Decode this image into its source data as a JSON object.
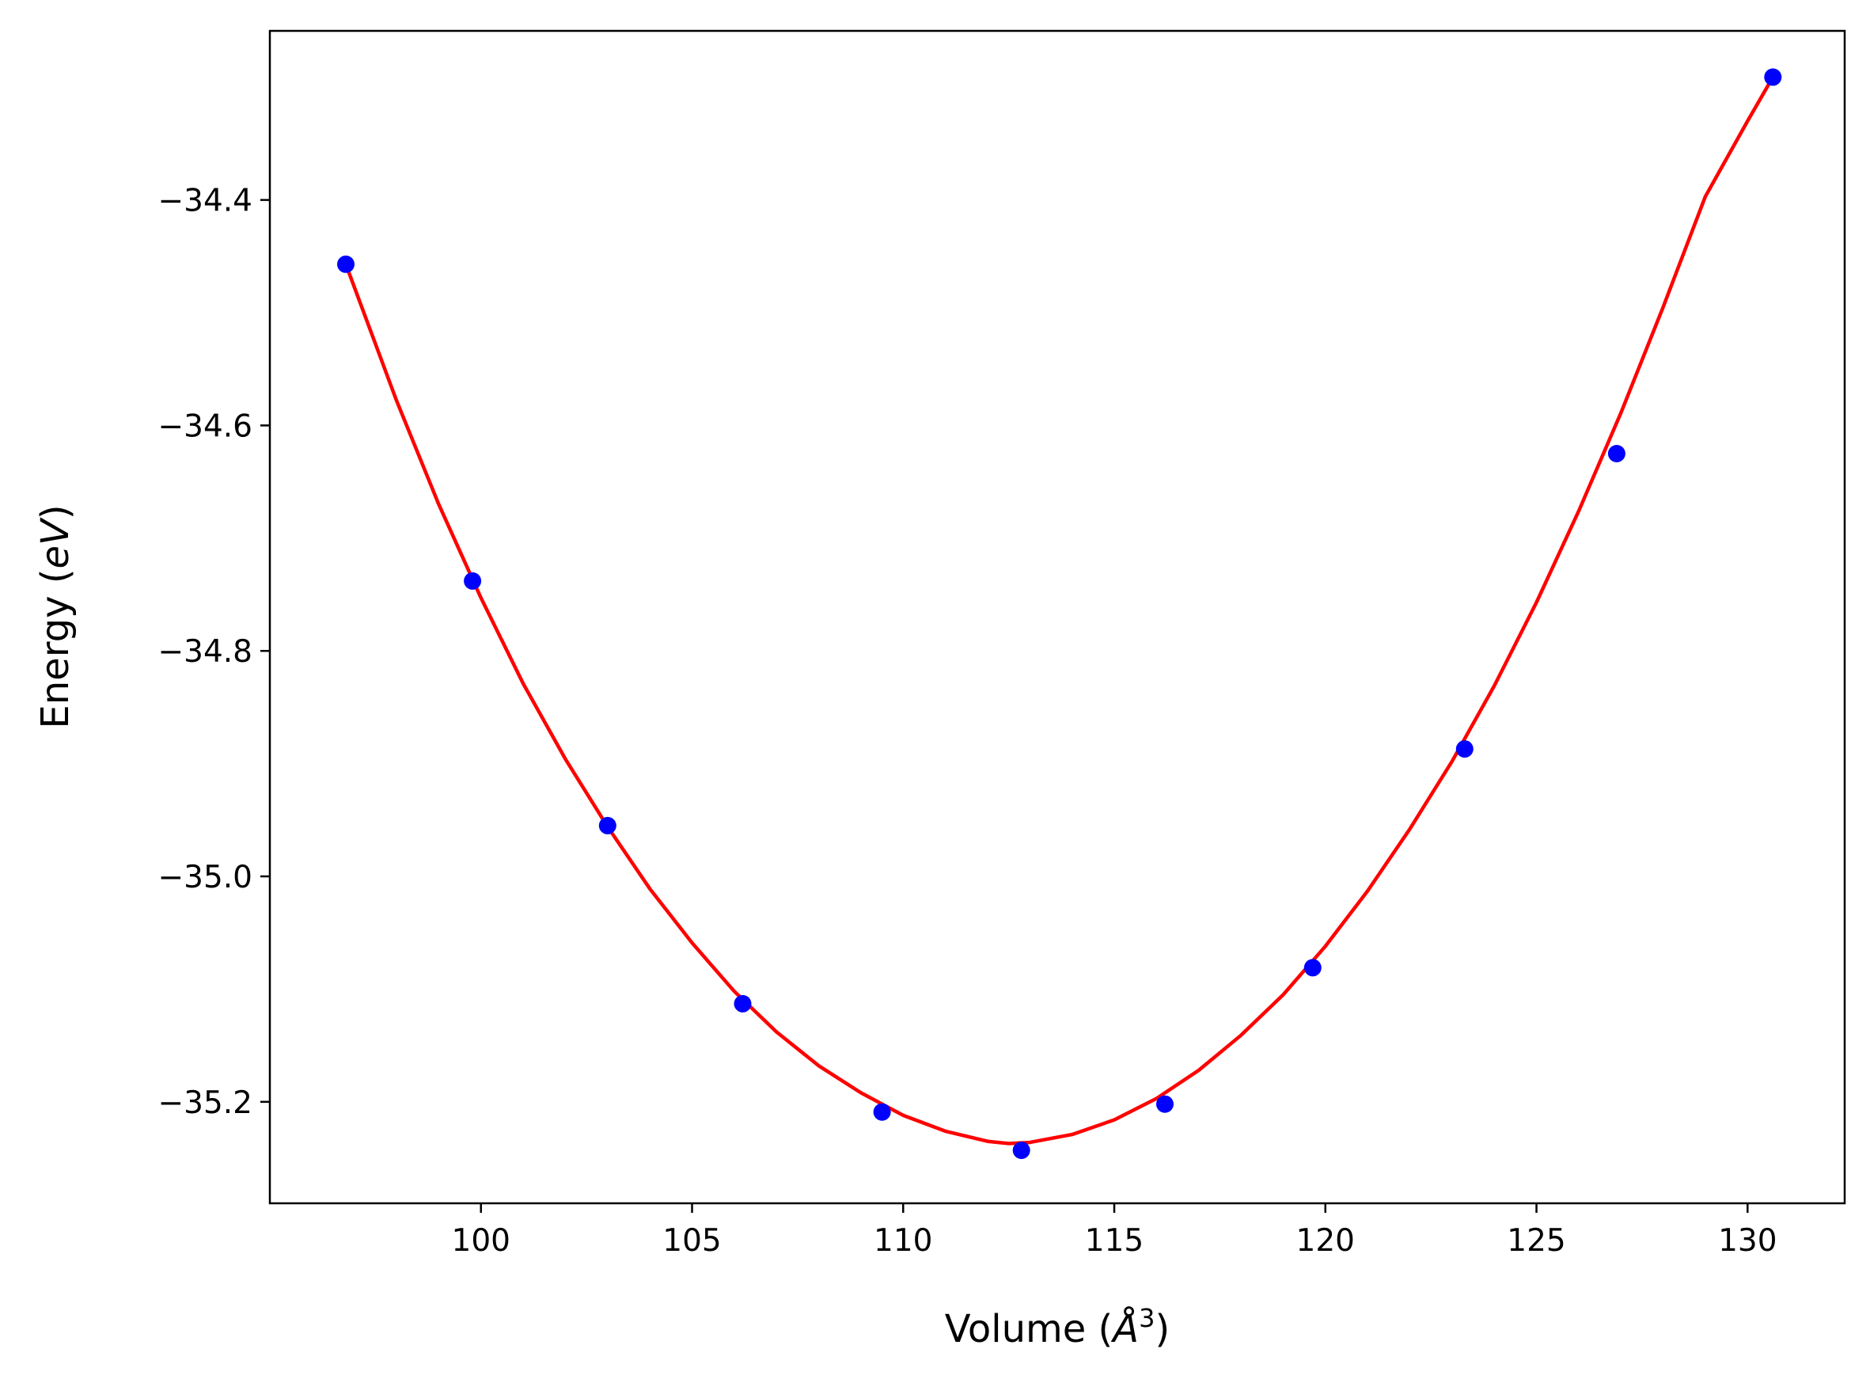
{
  "chart_data": {
    "type": "scatter",
    "title": "",
    "xlabel": {
      "prefix": "Volume (",
      "symbol": "Å",
      "exponent": "3",
      "suffix": ")"
    },
    "ylabel": {
      "prefix": "Energy (",
      "symbol": "eV",
      "suffix": ")"
    },
    "xlim": [
      95.0,
      132.3
    ],
    "ylim": [
      -35.29,
      -34.25
    ],
    "x_ticks": [
      100,
      105,
      110,
      115,
      120,
      125,
      130
    ],
    "x_tick_labels": [
      "100",
      "105",
      "110",
      "115",
      "120",
      "125",
      "130"
    ],
    "y_ticks": [
      -35.2,
      -35.0,
      -34.8,
      -34.6,
      -34.4
    ],
    "y_tick_labels": [
      "−35.2",
      "−35.0",
      "−34.8",
      "−34.6",
      "−34.4"
    ],
    "grid": false,
    "legend": "none",
    "series": [
      {
        "kind": "points",
        "color": "#0000ff",
        "x": [
          96.8,
          99.8,
          103.0,
          106.2,
          109.5,
          112.8,
          116.2,
          119.7,
          123.3,
          126.9,
          130.6
        ],
        "y": [
          -34.457,
          -34.738,
          -34.955,
          -35.113,
          -35.209,
          -35.243,
          -35.202,
          -35.081,
          -34.887,
          -34.625,
          -34.291
        ]
      },
      {
        "kind": "fit-curve",
        "color": "#ff0000",
        "x": [
          96.8,
          98.0,
          99.0,
          100.0,
          101.0,
          102.0,
          103.0,
          104.0,
          105.0,
          106.0,
          107.0,
          108.0,
          109.0,
          110.0,
          111.0,
          112.0,
          112.5,
          113.0,
          114.0,
          115.0,
          116.0,
          117.0,
          118.0,
          119.0,
          120.0,
          121.0,
          122.0,
          123.0,
          124.0,
          125.0,
          126.0,
          127.0,
          128.0,
          129.0,
          130.0,
          130.6
        ],
        "y": [
          -34.457,
          -34.578,
          -34.67,
          -34.753,
          -34.829,
          -34.896,
          -34.956,
          -35.011,
          -35.059,
          -35.102,
          -35.138,
          -35.168,
          -35.192,
          -35.212,
          -35.226,
          -35.235,
          -35.237,
          -35.236,
          -35.229,
          -35.216,
          -35.197,
          -35.172,
          -35.141,
          -35.105,
          -35.062,
          -35.013,
          -34.958,
          -34.898,
          -34.831,
          -34.757,
          -34.676,
          -34.589,
          -34.495,
          -34.397,
          -34.33,
          -34.291
        ]
      }
    ]
  }
}
